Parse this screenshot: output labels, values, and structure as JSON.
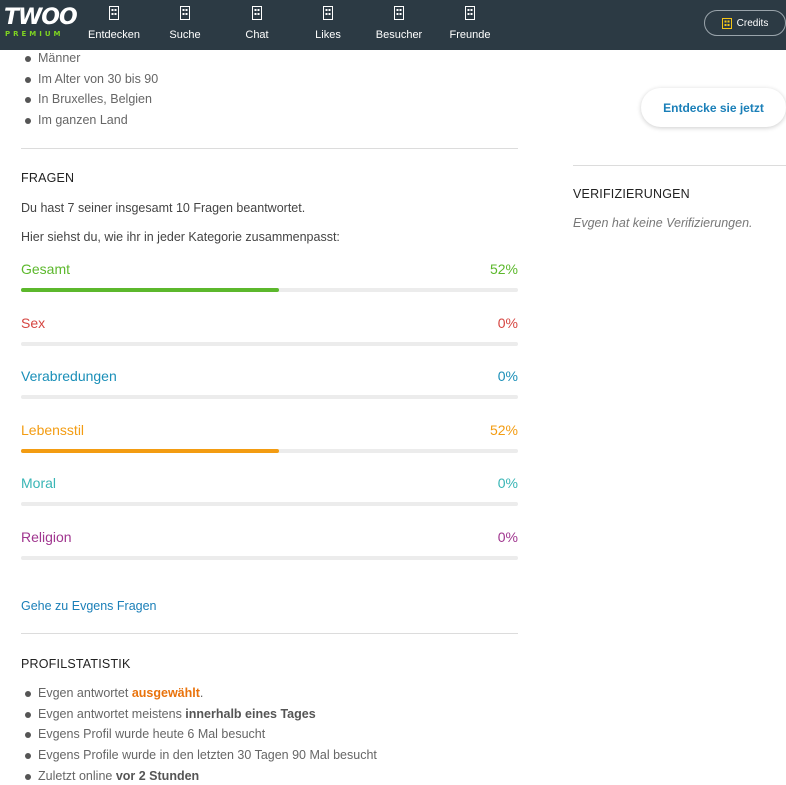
{
  "logo": {
    "main": "TWOO",
    "sub": "PREMIUM"
  },
  "nav": [
    {
      "label": "Entdecken"
    },
    {
      "label": "Suche"
    },
    {
      "label": "Chat"
    },
    {
      "label": "Likes"
    },
    {
      "label": "Besucher"
    },
    {
      "label": "Freunde"
    }
  ],
  "credits": {
    "label": "Credits"
  },
  "looking_for": [
    "Männer",
    "Im Alter von 30 bis 90",
    "In Bruxelles, Belgien",
    "Im ganzen Land"
  ],
  "questions": {
    "title": "FRAGEN",
    "answered_text": "Du hast 7 seiner insgesamt 10 Fragen beantwortet.",
    "intro_text": "Hier siehst du, wie ihr in jeder Kategorie zusammenpasst:",
    "categories": [
      {
        "name": "Gesamt",
        "percent_label": "52%",
        "value": 0.52,
        "color": "#5cb82c"
      },
      {
        "name": "Sex",
        "percent_label": "0%",
        "value": 0,
        "color": "#d64541"
      },
      {
        "name": "Verabredungen",
        "percent_label": "0%",
        "value": 0,
        "color": "#1a8fb8"
      },
      {
        "name": "Lebensstil",
        "percent_label": "52%",
        "value": 0.52,
        "color": "#f39c12"
      },
      {
        "name": "Moral",
        "percent_label": "0%",
        "value": 0,
        "color": "#38b5b5"
      },
      {
        "name": "Religion",
        "percent_label": "0%",
        "value": 0,
        "color": "#a0368f"
      }
    ],
    "link_label": "Gehe zu Evgens Fragen"
  },
  "profile_stats": {
    "title": "PROFILSTATISTIK",
    "items": [
      {
        "before": "Evgen antwortet ",
        "highlight": "ausgewählt",
        "after": "."
      },
      {
        "before": "Evgen antwortet meistens ",
        "highlight": "innerhalb eines Tages",
        "after": ""
      },
      {
        "before": "Evgens Profil wurde heute 6 Mal besucht",
        "highlight": "",
        "after": ""
      },
      {
        "before": "Evgens Profile wurde in den letzten 30 Tagen 90 Mal besucht",
        "highlight": "",
        "after": ""
      },
      {
        "before": "Zuletzt online ",
        "highlight": "vor 2 Stunden",
        "after": ""
      }
    ]
  },
  "discover_button": {
    "label": "Entdecke sie jetzt"
  },
  "verifications": {
    "title": "VERIFIZIERUNGEN",
    "text": "Evgen hat keine Verifizierungen."
  },
  "colors": {
    "topbar": "#2c3a44",
    "logo_sub": "#7ed321",
    "link": "#1a7fb8",
    "highlight": "#e9730c"
  }
}
